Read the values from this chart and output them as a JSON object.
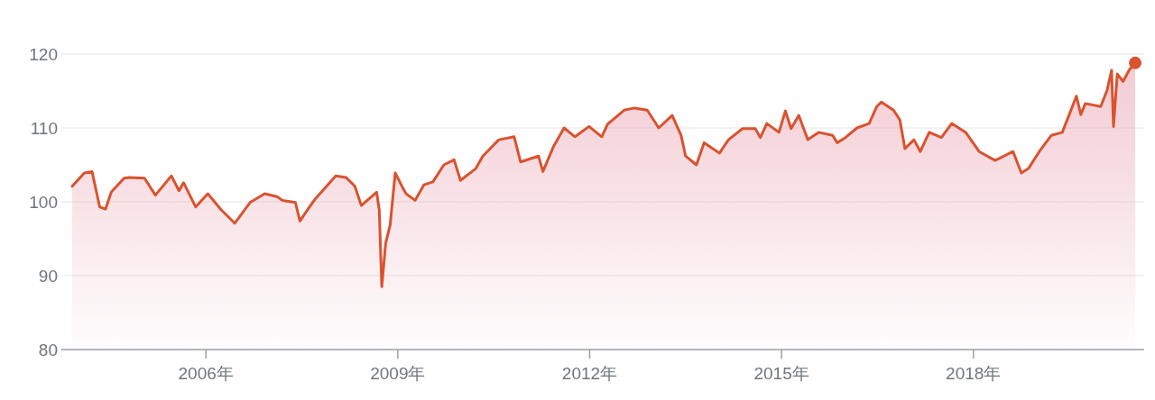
{
  "chart_data": {
    "type": "area",
    "color": "#d9532f",
    "x": [
      2003.91,
      2004.1,
      2004.22,
      2004.34,
      2004.43,
      2004.52,
      2004.72,
      2004.8,
      2005.04,
      2005.21,
      2005.46,
      2005.58,
      2005.65,
      2005.84,
      2006.03,
      2006.24,
      2006.45,
      2006.69,
      2006.92,
      2007.11,
      2007.2,
      2007.4,
      2007.47,
      2007.62,
      2007.72,
      2008.03,
      2008.19,
      2008.33,
      2008.43,
      2008.67,
      2008.71,
      2008.75,
      2008.81,
      2008.88,
      2008.96,
      2009.09,
      2009.13,
      2009.27,
      2009.41,
      2009.55,
      2009.72,
      2009.88,
      2009.98,
      2010.22,
      2010.33,
      2010.58,
      2010.82,
      2010.92,
      2011.2,
      2011.27,
      2011.43,
      2011.6,
      2011.77,
      2011.99,
      2012.19,
      2012.28,
      2012.54,
      2012.7,
      2012.9,
      2013.08,
      2013.29,
      2013.43,
      2013.5,
      2013.67,
      2013.79,
      2014.03,
      2014.17,
      2014.39,
      2014.59,
      2014.67,
      2014.77,
      2014.96,
      2015.06,
      2015.15,
      2015.27,
      2015.41,
      2015.58,
      2015.8,
      2015.87,
      2016.0,
      2016.18,
      2016.37,
      2016.49,
      2016.56,
      2016.75,
      2016.85,
      2016.93,
      2017.07,
      2017.17,
      2017.31,
      2017.5,
      2017.66,
      2017.88,
      2018.09,
      2018.34,
      2018.62,
      2018.75,
      2018.86,
      2019.03,
      2019.22,
      2019.39,
      2019.61,
      2019.68,
      2019.75,
      2019.99,
      2020.09,
      2020.16,
      2020.19,
      2020.25,
      2020.34,
      2020.44,
      2020.53
    ],
    "values": [
      102.1,
      103.9,
      104.1,
      99.3,
      99.0,
      101.3,
      103.2,
      103.3,
      103.2,
      100.9,
      103.5,
      101.5,
      102.6,
      99.3,
      101.1,
      98.9,
      97.1,
      99.9,
      101.1,
      100.7,
      100.2,
      99.9,
      97.4,
      99.3,
      100.5,
      103.5,
      103.3,
      102.1,
      99.5,
      101.3,
      98.9,
      88.5,
      94.4,
      96.8,
      103.9,
      101.7,
      101.1,
      100.2,
      102.3,
      102.7,
      105.0,
      105.7,
      102.9,
      104.5,
      106.2,
      108.4,
      108.8,
      105.4,
      106.2,
      104.1,
      107.4,
      110.0,
      108.8,
      110.2,
      108.8,
      110.5,
      112.4,
      112.7,
      112.4,
      110.0,
      111.7,
      109.0,
      106.2,
      105.0,
      108.0,
      106.6,
      108.4,
      109.9,
      109.9,
      108.7,
      110.6,
      109.4,
      112.3,
      109.9,
      111.7,
      108.4,
      109.4,
      109.0,
      108.0,
      108.7,
      110.0,
      110.6,
      112.9,
      113.5,
      112.4,
      111.1,
      107.2,
      108.4,
      106.8,
      109.4,
      108.7,
      110.6,
      109.4,
      106.8,
      105.6,
      106.8,
      103.9,
      104.5,
      106.8,
      109.0,
      109.4,
      114.3,
      111.8,
      113.3,
      112.9,
      115.1,
      117.8,
      110.2,
      117.3,
      116.3,
      117.9,
      118.8
    ],
    "xlim": [
      2003.74,
      2020.67
    ],
    "ylim": [
      80,
      120
    ],
    "xticks": [
      {
        "value": 2006,
        "label": "2006年"
      },
      {
        "value": 2009,
        "label": "2009年"
      },
      {
        "value": 2012,
        "label": "2012年"
      },
      {
        "value": 2015,
        "label": "2015年"
      },
      {
        "value": 2018,
        "label": "2018年"
      }
    ],
    "yticks": [
      80,
      90,
      100,
      110,
      120
    ],
    "grid": "y"
  }
}
